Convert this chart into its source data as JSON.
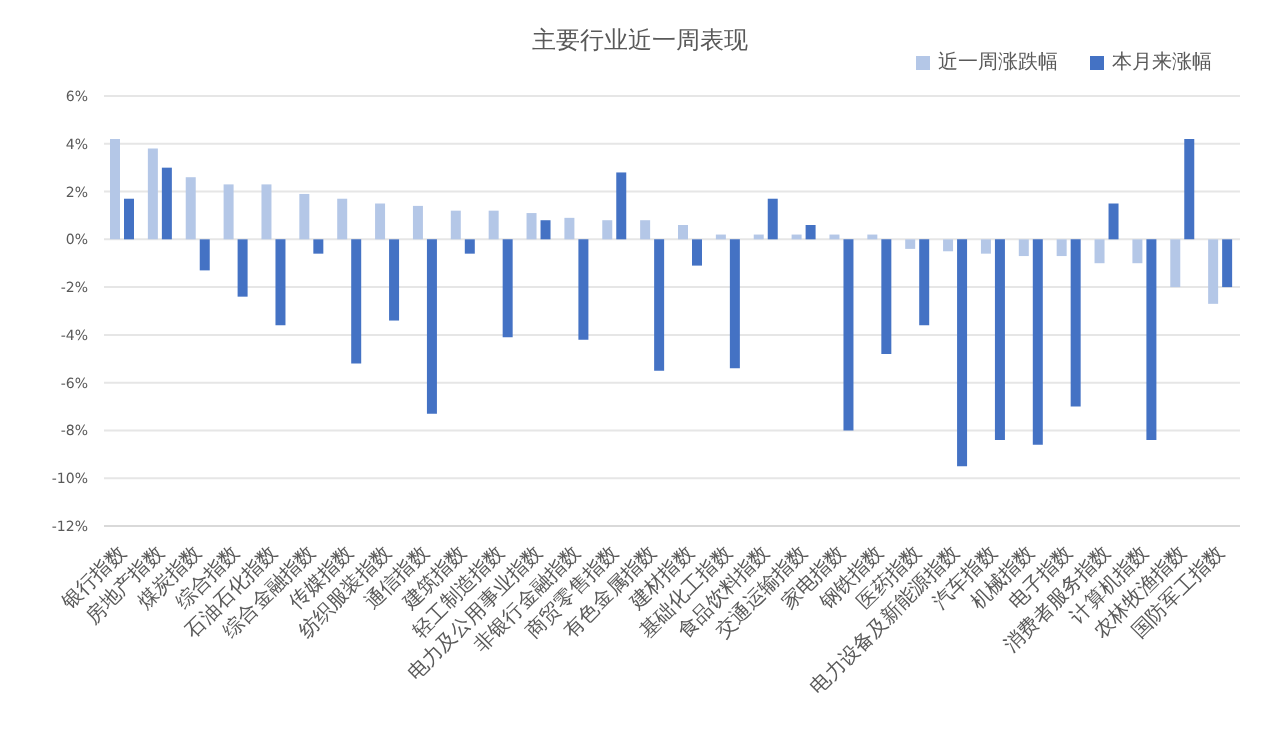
{
  "chart_data": {
    "type": "bar",
    "title": "主要行业近一周表现",
    "categories": [
      "银行指数",
      "房地产指数",
      "煤炭指数",
      "综合指数",
      "石油石化指数",
      "综合金融指数",
      "传媒指数",
      "纺织服装指数",
      "通信指数",
      "建筑指数",
      "轻工制造指数",
      "电力及公用事业指数",
      "非银行金融指数",
      "商贸零售指数",
      "有色金属指数",
      "建材指数",
      "基础化工指数",
      "食品饮料指数",
      "交通运输指数",
      "家电指数",
      "钢铁指数",
      "医药指数",
      "电力设备及新能源指数",
      "汽车指数",
      "机械指数",
      "电子指数",
      "消费者服务指数",
      "计算机指数",
      "农林牧渔指数",
      "国防军工指数"
    ],
    "series": [
      {
        "name": "近一周涨跌幅",
        "color": "#b4c7e7",
        "values": [
          4.2,
          3.8,
          2.6,
          2.3,
          2.3,
          1.9,
          1.7,
          1.5,
          1.4,
          1.2,
          1.2,
          1.1,
          0.9,
          0.8,
          0.8,
          0.6,
          0.2,
          0.2,
          0.2,
          0.2,
          0.2,
          -0.4,
          -0.5,
          -0.6,
          -0.7,
          -0.7,
          -1.0,
          -1.0,
          -2.0,
          -2.7
        ]
      },
      {
        "name": "本月来涨幅",
        "color": "#4472c4",
        "values": [
          1.7,
          3.0,
          -1.3,
          -2.4,
          -3.6,
          -0.6,
          -5.2,
          -3.4,
          -7.3,
          -0.6,
          -4.1,
          0.8,
          -4.2,
          2.8,
          -5.5,
          -1.1,
          -5.4,
          1.7,
          0.6,
          -8.0,
          -4.8,
          -3.6,
          -9.5,
          -8.4,
          -8.6,
          -7.0,
          1.5,
          -8.4,
          4.2,
          -2.0
        ]
      }
    ],
    "ylim": [
      -12,
      6
    ],
    "yticks": [
      {
        "value": -12,
        "label": "-12%"
      },
      {
        "value": -10,
        "label": "-10%"
      },
      {
        "value": -8,
        "label": "-8%"
      },
      {
        "value": -6,
        "label": "-6%"
      },
      {
        "value": -4,
        "label": "-4%"
      },
      {
        "value": -2,
        "label": "-2%"
      },
      {
        "value": 0,
        "label": "0%"
      },
      {
        "value": 2,
        "label": "2%"
      },
      {
        "value": 4,
        "label": "4%"
      },
      {
        "value": 6,
        "label": "6%"
      }
    ],
    "grid": "y",
    "legend": "top right"
  }
}
